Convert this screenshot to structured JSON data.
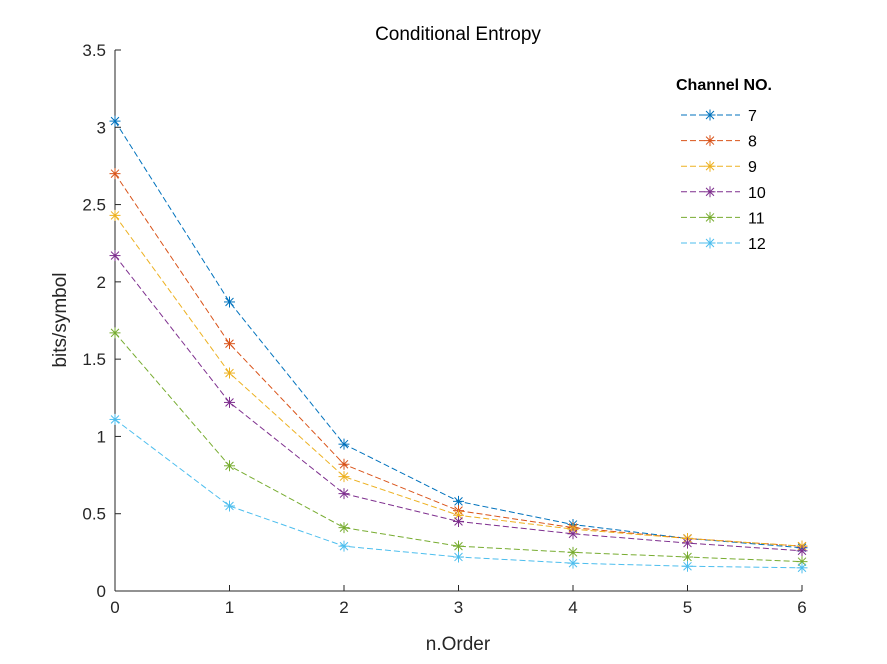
{
  "chart_data": {
    "type": "line",
    "title": "Conditional Entropy",
    "xlabel": "n.Order",
    "ylabel": "bits/symbol",
    "xlim": [
      0,
      6
    ],
    "ylim": [
      0,
      3.5
    ],
    "x_ticks": [
      "0",
      "1",
      "2",
      "3",
      "4",
      "5",
      "6"
    ],
    "y_ticks": [
      "0",
      "0.5",
      "1",
      "1.5",
      "2",
      "2.5",
      "3",
      "3.5"
    ],
    "x": [
      0,
      1,
      2,
      3,
      4,
      5,
      6
    ],
    "grid": false,
    "legend": {
      "title": "Channel NO.",
      "placement": "top-right"
    },
    "line_style": "dashed",
    "marker": "asterisk",
    "series": [
      {
        "name": "7",
        "color": "#0072BD",
        "values": [
          3.04,
          1.87,
          0.95,
          0.58,
          0.43,
          0.34,
          0.28
        ]
      },
      {
        "name": "8",
        "color": "#D95319",
        "values": [
          2.7,
          1.6,
          0.82,
          0.52,
          0.41,
          0.34,
          0.29
        ]
      },
      {
        "name": "9",
        "color": "#EDB120",
        "values": [
          2.43,
          1.41,
          0.74,
          0.49,
          0.4,
          0.34,
          0.29
        ]
      },
      {
        "name": "10",
        "color": "#7E2F8E",
        "values": [
          2.17,
          1.22,
          0.63,
          0.45,
          0.37,
          0.31,
          0.26
        ]
      },
      {
        "name": "11",
        "color": "#77AC30",
        "values": [
          1.67,
          0.81,
          0.41,
          0.29,
          0.25,
          0.22,
          0.19
        ]
      },
      {
        "name": "12",
        "color": "#4DBEEE",
        "values": [
          1.11,
          0.55,
          0.29,
          0.22,
          0.18,
          0.16,
          0.15
        ]
      }
    ]
  }
}
